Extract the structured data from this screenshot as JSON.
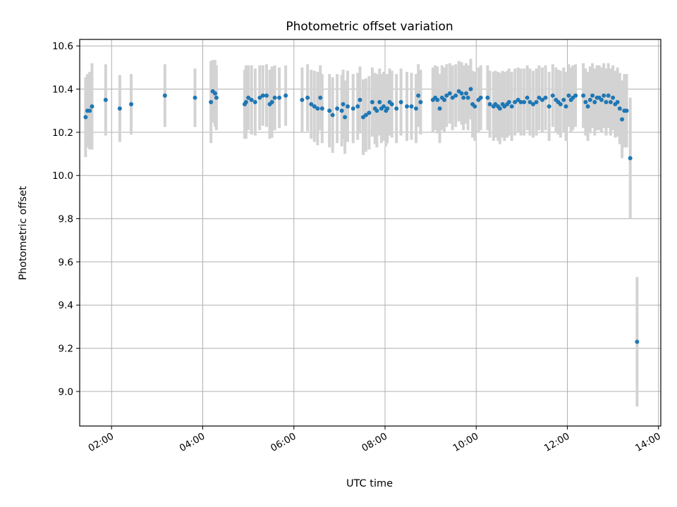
{
  "chart_data": {
    "type": "scatter",
    "title": "Photometric offset variation",
    "xlabel": "UTC time",
    "ylabel": "Photometric offset",
    "xlim": [
      1.3,
      14.05
    ],
    "ylim": [
      8.84,
      10.63
    ],
    "grid": true,
    "x_ticks": [
      {
        "value": 2,
        "label": "02:00"
      },
      {
        "value": 4,
        "label": "04:00"
      },
      {
        "value": 6,
        "label": "06:00"
      },
      {
        "value": 8,
        "label": "08:00"
      },
      {
        "value": 10,
        "label": "10:00"
      },
      {
        "value": 12,
        "label": "12:00"
      },
      {
        "value": 14,
        "label": "14:00"
      }
    ],
    "y_ticks": [
      {
        "value": 9.0,
        "label": "9.0"
      },
      {
        "value": 9.2,
        "label": "9.2"
      },
      {
        "value": 9.4,
        "label": "9.4"
      },
      {
        "value": 9.6,
        "label": "9.6"
      },
      {
        "value": 9.8,
        "label": "9.8"
      },
      {
        "value": 10.0,
        "label": "10.0"
      },
      {
        "value": 10.2,
        "label": "10.2"
      },
      {
        "value": 10.4,
        "label": "10.4"
      },
      {
        "value": 10.6,
        "label": "10.6"
      }
    ],
    "colors": {
      "points": "#1f77b4",
      "errorbars": "#d3d3d3",
      "grid": "#b0b0b0"
    },
    "series": [
      {
        "x_unit": "hours UTC",
        "points": [
          [
            1.43,
            10.27,
            0.185
          ],
          [
            1.47,
            10.3,
            0.17
          ],
          [
            1.52,
            10.3,
            0.18
          ],
          [
            1.57,
            10.32,
            0.2
          ],
          [
            1.87,
            10.35,
            0.165
          ],
          [
            2.18,
            10.31,
            0.155
          ],
          [
            2.43,
            10.33,
            0.14
          ],
          [
            3.17,
            10.37,
            0.145
          ],
          [
            3.83,
            10.36,
            0.135
          ],
          [
            4.18,
            10.34,
            0.19
          ],
          [
            4.22,
            10.39,
            0.145
          ],
          [
            4.27,
            10.38,
            0.155
          ],
          [
            4.3,
            10.36,
            0.15
          ],
          [
            4.92,
            10.33,
            0.16
          ],
          [
            4.95,
            10.34,
            0.17
          ],
          [
            5.0,
            10.36,
            0.15
          ],
          [
            5.07,
            10.35,
            0.16
          ],
          [
            5.15,
            10.34,
            0.155
          ],
          [
            5.25,
            10.36,
            0.15
          ],
          [
            5.32,
            10.37,
            0.14
          ],
          [
            5.4,
            10.37,
            0.145
          ],
          [
            5.47,
            10.33,
            0.16
          ],
          [
            5.52,
            10.34,
            0.165
          ],
          [
            5.58,
            10.36,
            0.15
          ],
          [
            5.68,
            10.36,
            0.14
          ],
          [
            5.82,
            10.37,
            0.14
          ],
          [
            6.18,
            10.35,
            0.15
          ],
          [
            6.3,
            10.36,
            0.155
          ],
          [
            6.38,
            10.33,
            0.16
          ],
          [
            6.45,
            10.32,
            0.165
          ],
          [
            6.52,
            10.31,
            0.17
          ],
          [
            6.58,
            10.36,
            0.15
          ],
          [
            6.62,
            10.31,
            0.16
          ],
          [
            6.78,
            10.3,
            0.17
          ],
          [
            6.85,
            10.28,
            0.175
          ],
          [
            6.95,
            10.31,
            0.16
          ],
          [
            7.05,
            10.3,
            0.165
          ],
          [
            7.08,
            10.33,
            0.16
          ],
          [
            7.12,
            10.27,
            0.17
          ],
          [
            7.18,
            10.32,
            0.165
          ],
          [
            7.3,
            10.31,
            0.16
          ],
          [
            7.4,
            10.32,
            0.155
          ],
          [
            7.45,
            10.35,
            0.155
          ],
          [
            7.52,
            10.27,
            0.175
          ],
          [
            7.58,
            10.28,
            0.17
          ],
          [
            7.65,
            10.29,
            0.17
          ],
          [
            7.72,
            10.34,
            0.16
          ],
          [
            7.78,
            10.31,
            0.165
          ],
          [
            7.82,
            10.3,
            0.17
          ],
          [
            7.88,
            10.34,
            0.155
          ],
          [
            7.92,
            10.31,
            0.16
          ],
          [
            7.97,
            10.32,
            0.16
          ],
          [
            8.02,
            10.3,
            0.165
          ],
          [
            8.05,
            10.31,
            0.16
          ],
          [
            8.1,
            10.34,
            0.155
          ],
          [
            8.15,
            10.33,
            0.155
          ],
          [
            8.25,
            10.31,
            0.16
          ],
          [
            8.35,
            10.34,
            0.155
          ],
          [
            8.48,
            10.32,
            0.16
          ],
          [
            8.58,
            10.32,
            0.155
          ],
          [
            8.68,
            10.31,
            0.16
          ],
          [
            8.73,
            10.37,
            0.145
          ],
          [
            8.78,
            10.34,
            0.15
          ],
          [
            9.05,
            10.35,
            0.15
          ],
          [
            9.1,
            10.36,
            0.15
          ],
          [
            9.15,
            10.35,
            0.155
          ],
          [
            9.2,
            10.31,
            0.16
          ],
          [
            9.25,
            10.36,
            0.15
          ],
          [
            9.3,
            10.35,
            0.15
          ],
          [
            9.35,
            10.37,
            0.145
          ],
          [
            9.42,
            10.38,
            0.14
          ],
          [
            9.48,
            10.36,
            0.15
          ],
          [
            9.55,
            10.37,
            0.145
          ],
          [
            9.62,
            10.39,
            0.14
          ],
          [
            9.68,
            10.38,
            0.145
          ],
          [
            9.72,
            10.36,
            0.15
          ],
          [
            9.78,
            10.38,
            0.14
          ],
          [
            9.82,
            10.36,
            0.15
          ],
          [
            9.88,
            10.4,
            0.14
          ],
          [
            9.92,
            10.33,
            0.155
          ],
          [
            9.97,
            10.32,
            0.16
          ],
          [
            10.05,
            10.35,
            0.15
          ],
          [
            10.1,
            10.36,
            0.15
          ],
          [
            10.25,
            10.36,
            0.15
          ],
          [
            10.3,
            10.33,
            0.155
          ],
          [
            10.38,
            10.32,
            0.16
          ],
          [
            10.42,
            10.33,
            0.155
          ],
          [
            10.48,
            10.32,
            0.16
          ],
          [
            10.52,
            10.31,
            0.165
          ],
          [
            10.58,
            10.33,
            0.155
          ],
          [
            10.62,
            10.32,
            0.16
          ],
          [
            10.68,
            10.33,
            0.155
          ],
          [
            10.72,
            10.34,
            0.155
          ],
          [
            10.78,
            10.32,
            0.16
          ],
          [
            10.85,
            10.34,
            0.155
          ],
          [
            10.92,
            10.35,
            0.15
          ],
          [
            10.98,
            10.34,
            0.155
          ],
          [
            11.05,
            10.34,
            0.155
          ],
          [
            11.12,
            10.36,
            0.15
          ],
          [
            11.18,
            10.34,
            0.155
          ],
          [
            11.25,
            10.33,
            0.155
          ],
          [
            11.32,
            10.34,
            0.155
          ],
          [
            11.38,
            10.36,
            0.15
          ],
          [
            11.45,
            10.35,
            0.15
          ],
          [
            11.52,
            10.36,
            0.15
          ],
          [
            11.6,
            10.32,
            0.16
          ],
          [
            11.68,
            10.37,
            0.145
          ],
          [
            11.75,
            10.35,
            0.15
          ],
          [
            11.8,
            10.34,
            0.15
          ],
          [
            11.85,
            10.33,
            0.155
          ],
          [
            11.92,
            10.35,
            0.15
          ],
          [
            11.97,
            10.32,
            0.16
          ],
          [
            12.03,
            10.37,
            0.145
          ],
          [
            12.08,
            10.35,
            0.15
          ],
          [
            12.12,
            10.36,
            0.15
          ],
          [
            12.18,
            10.37,
            0.145
          ],
          [
            12.35,
            10.37,
            0.15
          ],
          [
            12.4,
            10.34,
            0.155
          ],
          [
            12.45,
            10.32,
            0.16
          ],
          [
            12.5,
            10.35,
            0.155
          ],
          [
            12.55,
            10.37,
            0.15
          ],
          [
            12.6,
            10.34,
            0.155
          ],
          [
            12.65,
            10.36,
            0.15
          ],
          [
            12.7,
            10.36,
            0.15
          ],
          [
            12.75,
            10.35,
            0.15
          ],
          [
            12.8,
            10.37,
            0.15
          ],
          [
            12.85,
            10.34,
            0.155
          ],
          [
            12.9,
            10.37,
            0.15
          ],
          [
            12.95,
            10.34,
            0.155
          ],
          [
            13.0,
            10.36,
            0.15
          ],
          [
            13.05,
            10.33,
            0.155
          ],
          [
            13.1,
            10.34,
            0.16
          ],
          [
            13.15,
            10.31,
            0.165
          ],
          [
            13.2,
            10.26,
            0.18
          ],
          [
            13.25,
            10.3,
            0.17
          ],
          [
            13.3,
            10.3,
            0.17
          ],
          [
            13.38,
            10.08,
            0.28
          ],
          [
            13.53,
            9.23,
            0.3
          ]
        ]
      }
    ]
  }
}
